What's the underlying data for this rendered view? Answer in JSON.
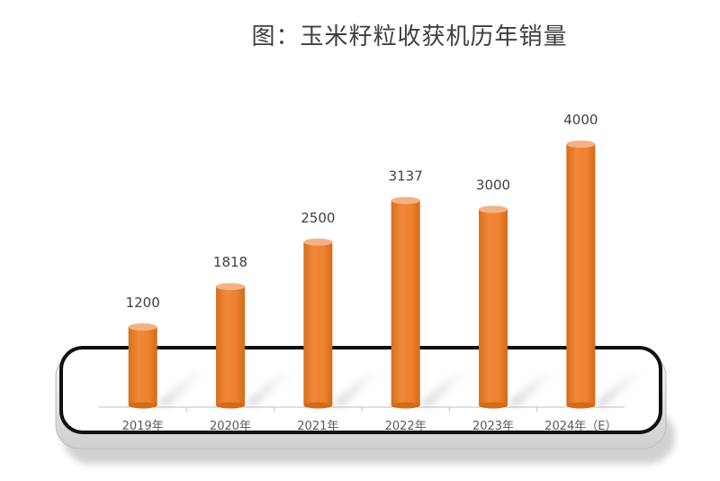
{
  "chart_data": {
    "type": "bar",
    "title": "图：玉米籽粒收获机历年销量",
    "categories": [
      "2019年",
      "2020年",
      "2021年",
      "2022年",
      "2023年",
      "2024年（E）"
    ],
    "values": [
      1200,
      1818,
      2500,
      3137,
      3000,
      4000
    ],
    "xlabel": "",
    "ylabel": "",
    "ylim": [
      0,
      4000
    ],
    "grid": false,
    "legend": "none",
    "colors": {
      "bar": "#EE822F",
      "bar_top": "#F4B183",
      "frame": "#111111",
      "platform": "#E3E3E3"
    }
  }
}
